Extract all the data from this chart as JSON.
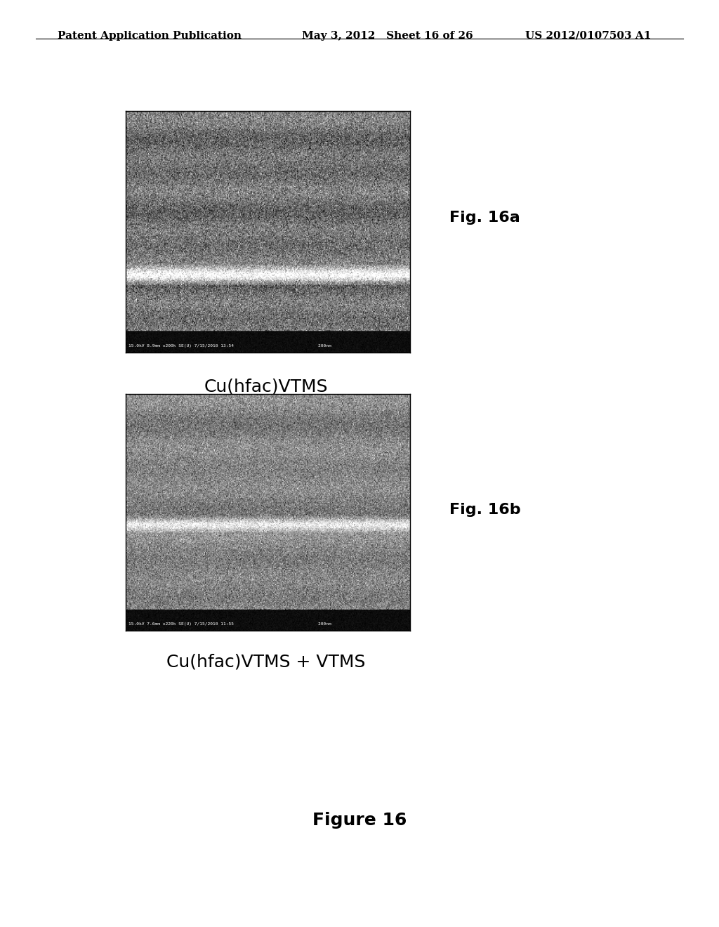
{
  "header_left": "Patent Application Publication",
  "header_mid": "May 3, 2012   Sheet 16 of 26",
  "header_right": "US 2012/0107503 A1",
  "fig_label_a": "Fig. 16a",
  "fig_label_b": "Fig. 16b",
  "caption_a": "Cu(hfac)VTMS",
  "caption_b": "Cu(hfac)VTMS + VTMS",
  "figure_title": "Figure 16",
  "sem_bar_text_a": "15.0kV 8.9mm x200k SE(U) 7/15/2010 13:54                                200nm",
  "sem_bar_text_b": "15.0kV 7.6mm x220k SE(U) 7/15/2010 11:55                                200nm",
  "bg_color": "#ffffff",
  "header_fontsize": 11,
  "fig_label_fontsize": 16,
  "caption_fontsize": 18,
  "figure_title_fontsize": 18,
  "sem_bar_fontsize": 6
}
